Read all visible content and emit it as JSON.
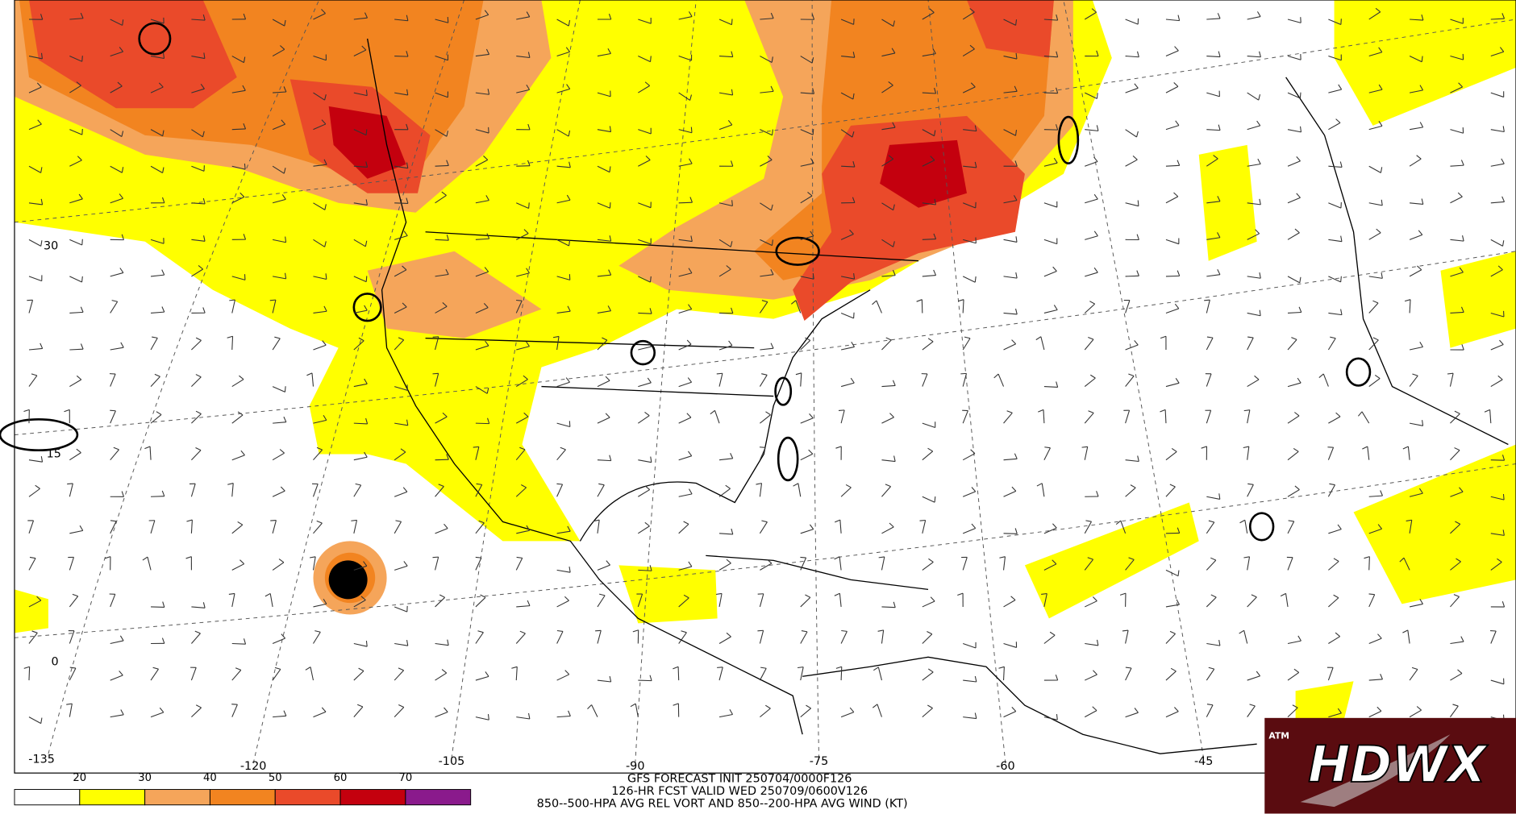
{
  "map": {
    "lat_labels": [
      "30",
      "15",
      "0"
    ],
    "lon_labels": [
      "-135",
      "-120",
      "-105",
      "-90",
      "-75",
      "-60",
      "-45"
    ]
  },
  "colorbar": {
    "ticks": [
      20,
      30,
      40,
      50,
      60,
      70
    ],
    "colors": [
      "#ffffff",
      "#ffff00",
      "#f5a55a",
      "#f28420",
      "#ea4a2a",
      "#c4000e",
      "#8a1a8c"
    ]
  },
  "caption": {
    "line1": "GFS FORECAST INIT 250704/0000F126",
    "line2": "126-HR FCST VALID WED 250709/0600V126",
    "line3": "850--500-HPA AVG REL VORT AND 850--200-HPA AVG WIND (KT)"
  },
  "logo": {
    "text": "HDWX",
    "badge": "ATM"
  }
}
